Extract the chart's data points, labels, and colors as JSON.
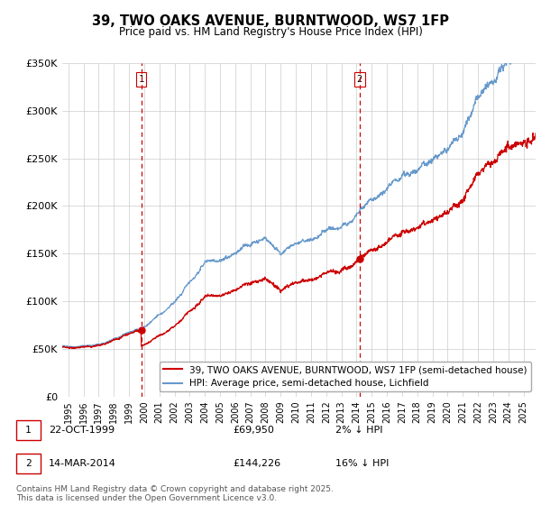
{
  "title": "39, TWO OAKS AVENUE, BURNTWOOD, WS7 1FP",
  "subtitle": "Price paid vs. HM Land Registry's House Price Index (HPI)",
  "ylim": [
    0,
    350000
  ],
  "yticks": [
    0,
    50000,
    100000,
    150000,
    200000,
    250000,
    300000,
    350000
  ],
  "ytick_labels": [
    "£0",
    "£50K",
    "£100K",
    "£150K",
    "£200K",
    "£250K",
    "£300K",
    "£350K"
  ],
  "xlim_start": 1994.6,
  "xlim_end": 2025.8,
  "line1_color": "#cc0000",
  "line2_color": "#6699cc",
  "vline_color": "#cc0000",
  "purchase1_date": 1999.81,
  "purchase1_price": 69950,
  "purchase1_label": "1",
  "purchase2_date": 2014.2,
  "purchase2_price": 144226,
  "purchase2_label": "2",
  "legend_line1": "39, TWO OAKS AVENUE, BURNTWOOD, WS7 1FP (semi-detached house)",
  "legend_line2": "HPI: Average price, semi-detached house, Lichfield",
  "annotation1_date": "22-OCT-1999",
  "annotation1_price": "£69,950",
  "annotation1_pct": "2% ↓ HPI",
  "annotation2_date": "14-MAR-2014",
  "annotation2_price": "£144,226",
  "annotation2_pct": "16% ↓ HPI",
  "footnote": "Contains HM Land Registry data © Crown copyright and database right 2025.\nThis data is licensed under the Open Government Licence v3.0.",
  "background_color": "#ffffff",
  "grid_color": "#cccccc"
}
